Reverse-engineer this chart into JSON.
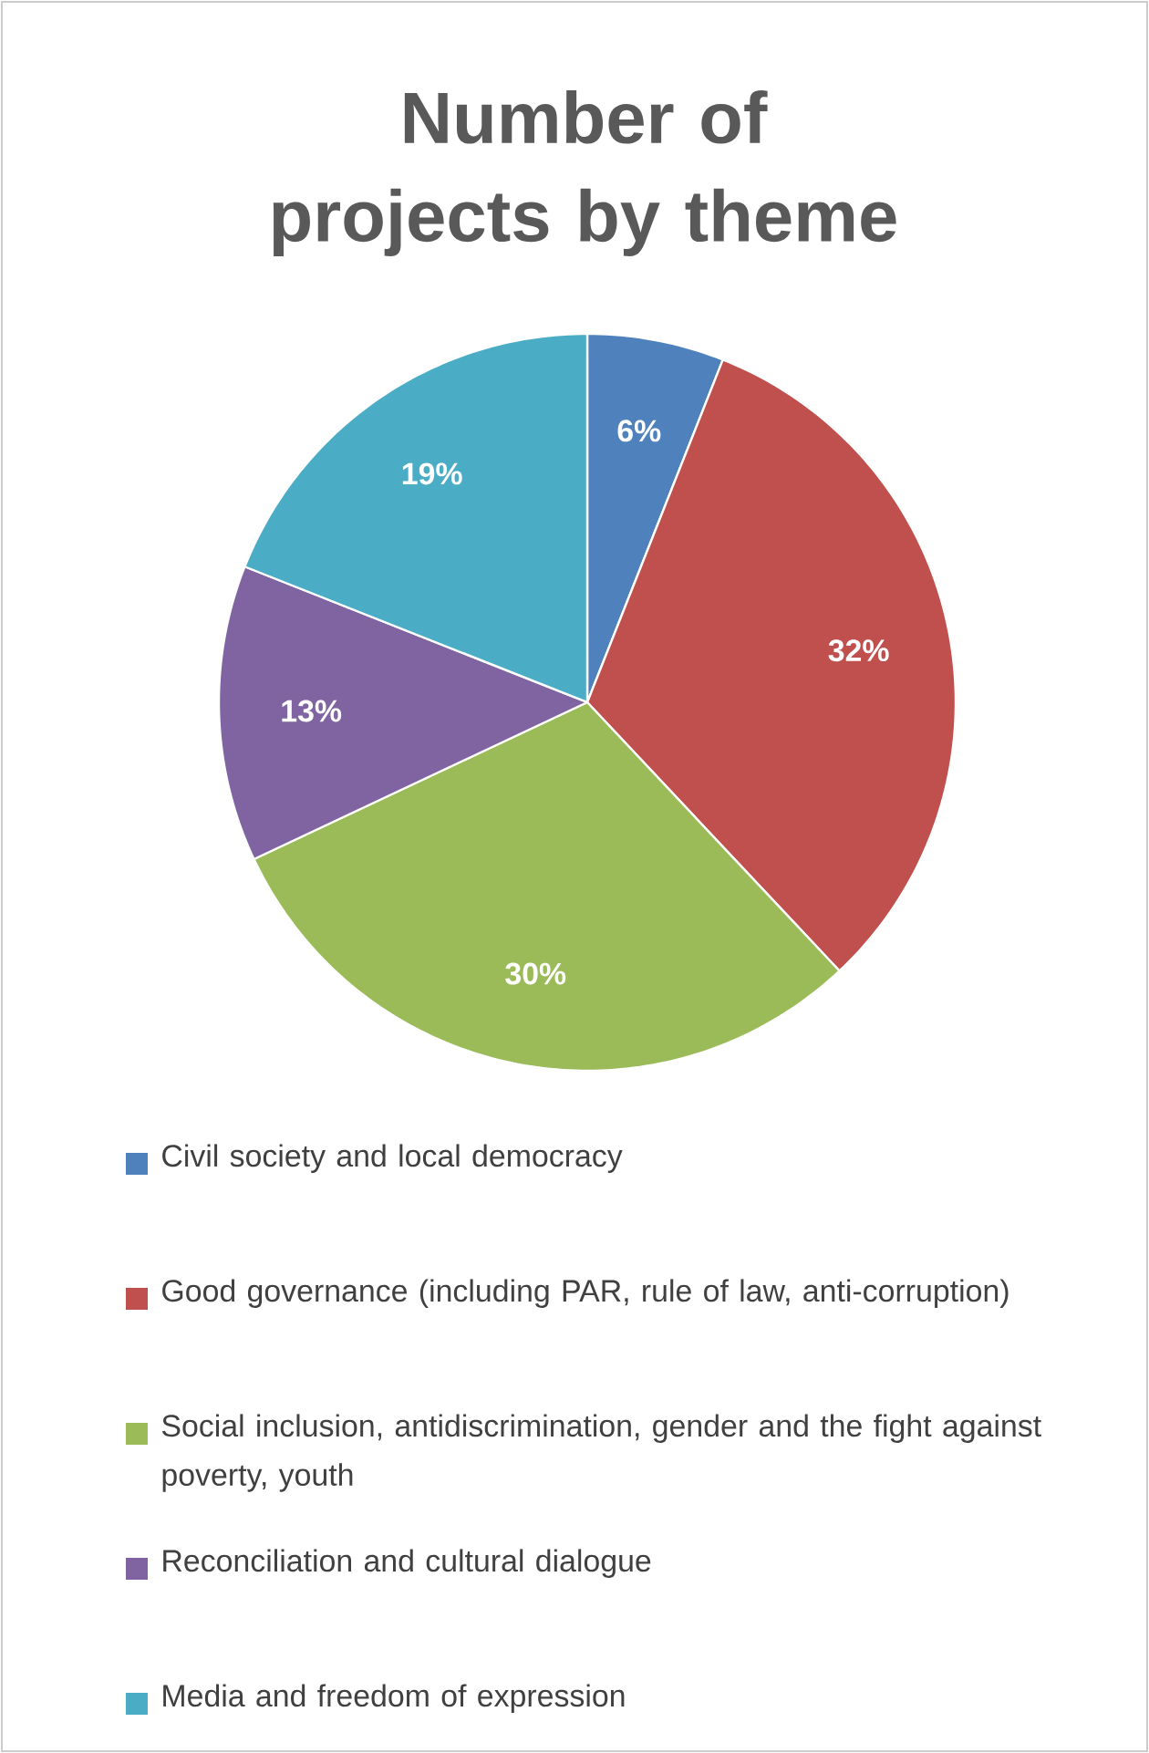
{
  "chart_data": {
    "type": "pie",
    "title": "Number of projects by theme",
    "categories": [
      "Civil society and local democracy",
      "Good governance (including PAR, rule of law, anti-corruption)",
      "Social inclusion, antidiscrimination, gender and the fight against poverty, youth",
      "Reconciliation and cultural dialogue",
      "Media and freedom of expression"
    ],
    "values": [
      6,
      32,
      30,
      13,
      19
    ],
    "colors": [
      "#4f81bd",
      "#c0504d",
      "#9bbb59",
      "#8064a2",
      "#4bacc6"
    ],
    "value_labels": [
      "6%",
      "32%",
      "30%",
      "13%",
      "19%"
    ],
    "legend": "bottom"
  }
}
